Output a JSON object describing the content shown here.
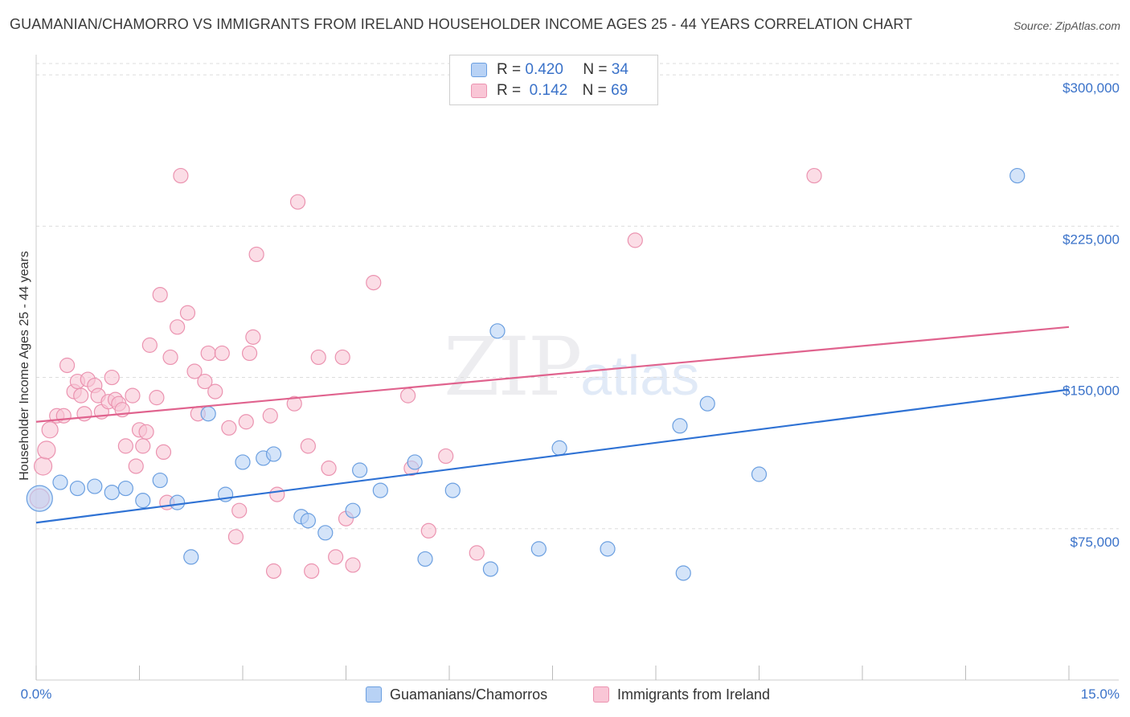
{
  "title": "GUAMANIAN/CHAMORRO VS IMMIGRANTS FROM IRELAND HOUSEHOLDER INCOME AGES 25 - 44 YEARS CORRELATION CHART",
  "source": "Source: ZipAtlas.com",
  "watermark": {
    "zip": "ZIP",
    "atlas": "atlas"
  },
  "legend": {
    "rows": [
      {
        "r_label": "R =",
        "r_value": "0.420",
        "n_label": "N =",
        "n_value": "34"
      },
      {
        "r_label": "R =",
        "r_value": "0.142",
        "n_label": "N =",
        "n_value": "69"
      }
    ]
  },
  "bottom_legend": {
    "series1": "Guamanians/Chamorros",
    "series2": "Immigrants from Ireland"
  },
  "colors": {
    "blue_fill": "#b8d2f5",
    "blue_stroke": "#6b9fe0",
    "blue_line": "#2f72d4",
    "pink_fill": "#f9c6d6",
    "pink_stroke": "#eb93b0",
    "pink_line": "#e0638e",
    "axis_text": "#3a72c9",
    "grid": "#dddddd"
  },
  "chart_data": {
    "type": "scatter",
    "title": "GUAMANIAN/CHAMORRO VS IMMIGRANTS FROM IRELAND HOUSEHOLDER INCOME AGES 25 - 44 YEARS CORRELATION CHART",
    "xlabel": "",
    "ylabel": "Householder Income Ages 25 - 44 years",
    "xlim": [
      0,
      15
    ],
    "ylim": [
      0,
      310000
    ],
    "x_tick_labels": [
      "0.0%",
      "15.0%"
    ],
    "y_ticks": [
      75000,
      150000,
      225000,
      300000
    ],
    "y_tick_labels": [
      "$75,000",
      "$150,000",
      "$225,000",
      "$300,000"
    ],
    "series": [
      {
        "name": "Guamanians/Chamorros",
        "color": "blue",
        "trend": {
          "x0": 0,
          "y0": 78000,
          "x1": 15,
          "y1": 144000
        },
        "points": [
          [
            0.05,
            90000,
            16
          ],
          [
            0.35,
            98000,
            9
          ],
          [
            0.6,
            95000,
            9
          ],
          [
            0.85,
            96000,
            9
          ],
          [
            1.1,
            93000,
            9
          ],
          [
            1.3,
            95000,
            9
          ],
          [
            1.55,
            89000,
            9
          ],
          [
            1.8,
            99000,
            9
          ],
          [
            2.05,
            88000,
            9
          ],
          [
            2.25,
            61000,
            9
          ],
          [
            2.5,
            132000,
            9
          ],
          [
            2.75,
            92000,
            9
          ],
          [
            3.0,
            108000,
            9
          ],
          [
            3.3,
            110000,
            9
          ],
          [
            3.45,
            112000,
            9
          ],
          [
            3.85,
            81000,
            9
          ],
          [
            3.95,
            79000,
            9
          ],
          [
            4.2,
            73000,
            9
          ],
          [
            4.6,
            84000,
            9
          ],
          [
            4.7,
            104000,
            9
          ],
          [
            5.0,
            94000,
            9
          ],
          [
            5.5,
            108000,
            9
          ],
          [
            5.65,
            60000,
            9
          ],
          [
            6.05,
            94000,
            9
          ],
          [
            6.6,
            55000,
            9
          ],
          [
            6.7,
            173000,
            9
          ],
          [
            7.3,
            65000,
            9
          ],
          [
            7.6,
            115000,
            9
          ],
          [
            8.3,
            65000,
            9
          ],
          [
            9.35,
            126000,
            9
          ],
          [
            9.4,
            53000,
            9
          ],
          [
            9.75,
            137000,
            9
          ],
          [
            10.5,
            102000,
            9
          ],
          [
            14.25,
            250000,
            9
          ]
        ]
      },
      {
        "name": "Immigrants from Ireland",
        "color": "pink",
        "trend": {
          "x0": 0,
          "y0": 128000,
          "x1": 15,
          "y1": 175000
        },
        "points": [
          [
            0.05,
            90000,
            12
          ],
          [
            0.1,
            106000,
            11
          ],
          [
            0.15,
            114000,
            11
          ],
          [
            0.2,
            124000,
            10
          ],
          [
            0.3,
            131000,
            9
          ],
          [
            0.4,
            131000,
            9
          ],
          [
            0.45,
            156000,
            9
          ],
          [
            0.55,
            143000,
            9
          ],
          [
            0.6,
            148000,
            9
          ],
          [
            0.65,
            141000,
            9
          ],
          [
            0.7,
            132000,
            9
          ],
          [
            0.75,
            149000,
            9
          ],
          [
            0.85,
            146000,
            9
          ],
          [
            0.9,
            141000,
            9
          ],
          [
            0.95,
            133000,
            9
          ],
          [
            1.05,
            138000,
            9
          ],
          [
            1.1,
            150000,
            9
          ],
          [
            1.15,
            139000,
            9
          ],
          [
            1.2,
            137000,
            9
          ],
          [
            1.25,
            134000,
            9
          ],
          [
            1.3,
            116000,
            9
          ],
          [
            1.4,
            141000,
            9
          ],
          [
            1.45,
            106000,
            9
          ],
          [
            1.5,
            124000,
            9
          ],
          [
            1.55,
            116000,
            9
          ],
          [
            1.6,
            123000,
            9
          ],
          [
            1.65,
            166000,
            9
          ],
          [
            1.75,
            140000,
            9
          ],
          [
            1.8,
            191000,
            9
          ],
          [
            1.85,
            113000,
            9
          ],
          [
            1.9,
            88000,
            9
          ],
          [
            1.95,
            160000,
            9
          ],
          [
            2.05,
            175000,
            9
          ],
          [
            2.1,
            250000,
            9
          ],
          [
            2.2,
            182000,
            9
          ],
          [
            2.3,
            153000,
            9
          ],
          [
            2.35,
            132000,
            9
          ],
          [
            2.45,
            148000,
            9
          ],
          [
            2.5,
            162000,
            9
          ],
          [
            2.6,
            143000,
            9
          ],
          [
            2.7,
            162000,
            9
          ],
          [
            2.8,
            125000,
            9
          ],
          [
            2.9,
            71000,
            9
          ],
          [
            2.95,
            84000,
            9
          ],
          [
            3.05,
            128000,
            9
          ],
          [
            3.1,
            162000,
            9
          ],
          [
            3.15,
            170000,
            9
          ],
          [
            3.2,
            211000,
            9
          ],
          [
            3.4,
            131000,
            9
          ],
          [
            3.45,
            54000,
            9
          ],
          [
            3.5,
            92000,
            9
          ],
          [
            3.75,
            137000,
            9
          ],
          [
            3.8,
            237000,
            9
          ],
          [
            3.95,
            116000,
            9
          ],
          [
            4.0,
            54000,
            9
          ],
          [
            4.1,
            160000,
            9
          ],
          [
            4.25,
            105000,
            9
          ],
          [
            4.35,
            61000,
            9
          ],
          [
            4.45,
            160000,
            9
          ],
          [
            4.5,
            80000,
            9
          ],
          [
            4.6,
            57000,
            9
          ],
          [
            4.9,
            197000,
            9
          ],
          [
            5.4,
            141000,
            9
          ],
          [
            5.45,
            105000,
            9
          ],
          [
            5.7,
            74000,
            9
          ],
          [
            5.95,
            111000,
            9
          ],
          [
            6.4,
            63000,
            9
          ],
          [
            8.7,
            218000,
            9
          ],
          [
            11.3,
            250000,
            9
          ]
        ]
      }
    ]
  }
}
